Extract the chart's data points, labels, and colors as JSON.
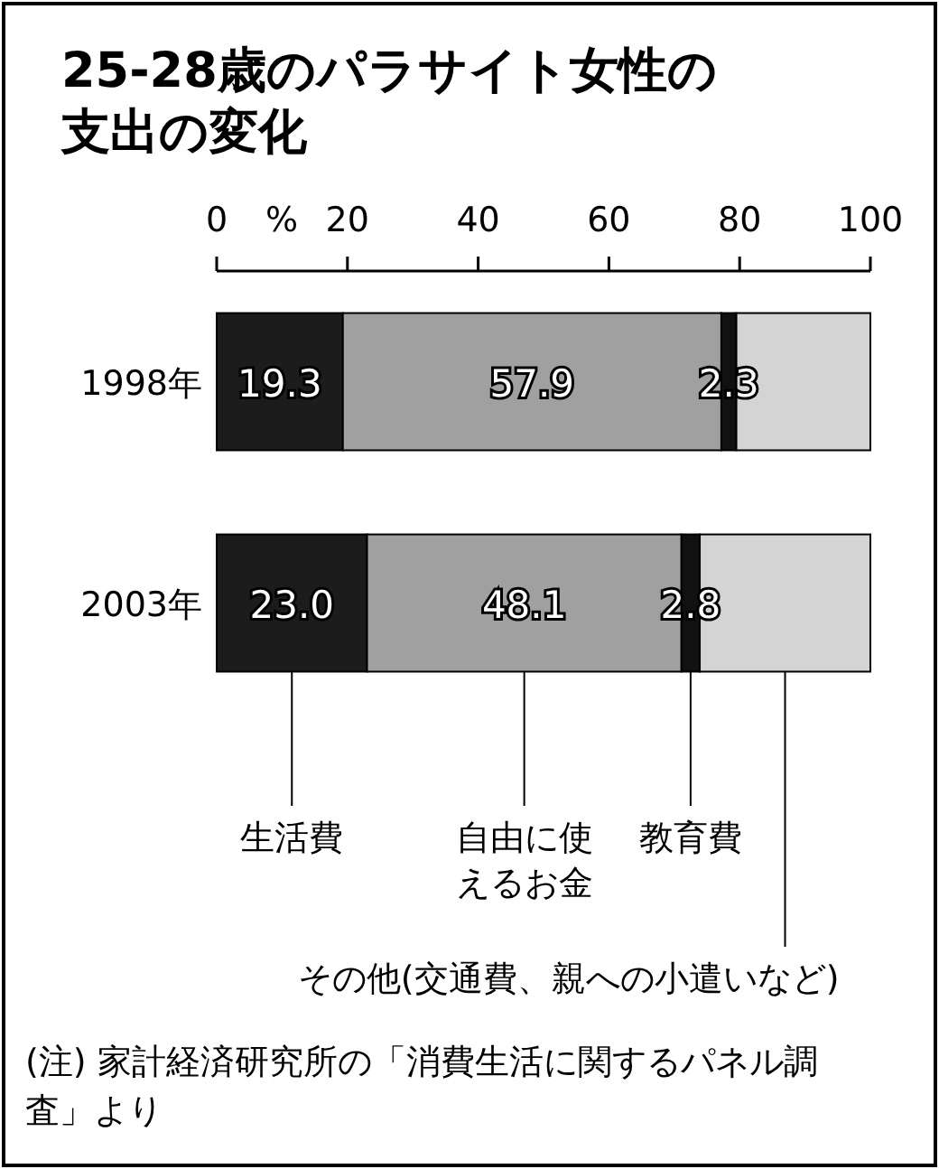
{
  "chart_data": {
    "type": "bar",
    "orientation": "horizontal",
    "stacked": true,
    "title": "25-28歳のパラサイト女性の支出の変化",
    "xlabel": "%",
    "categories": [
      "1998年",
      "2003年"
    ],
    "xlim": [
      0,
      100
    ],
    "xticks": [
      0,
      20,
      40,
      60,
      80,
      100
    ],
    "grid": false,
    "legend": false,
    "series": [
      {
        "name": "生活費",
        "color": "#1c1c1c",
        "values": [
          19.3,
          23.0
        ],
        "value_labels": [
          "19.3",
          "23.0"
        ]
      },
      {
        "name": "自由に使えるお金",
        "color": "#a0a0a0",
        "values": [
          57.9,
          48.1
        ],
        "value_labels": [
          "57.9",
          "48.1"
        ]
      },
      {
        "name": "教育費",
        "color": "#111111",
        "values": [
          2.3,
          2.8
        ],
        "value_labels": [
          "2.3",
          "2.8"
        ]
      },
      {
        "name": "その他(交通費、親への小遣いなど)",
        "color": "#d4d4d4",
        "values": [
          20.5,
          26.1
        ],
        "value_labels": [
          null,
          null
        ]
      }
    ],
    "annotations": [
      "(注) 家計経済研究所の「消費生活に関するパネル調査」より"
    ]
  }
}
